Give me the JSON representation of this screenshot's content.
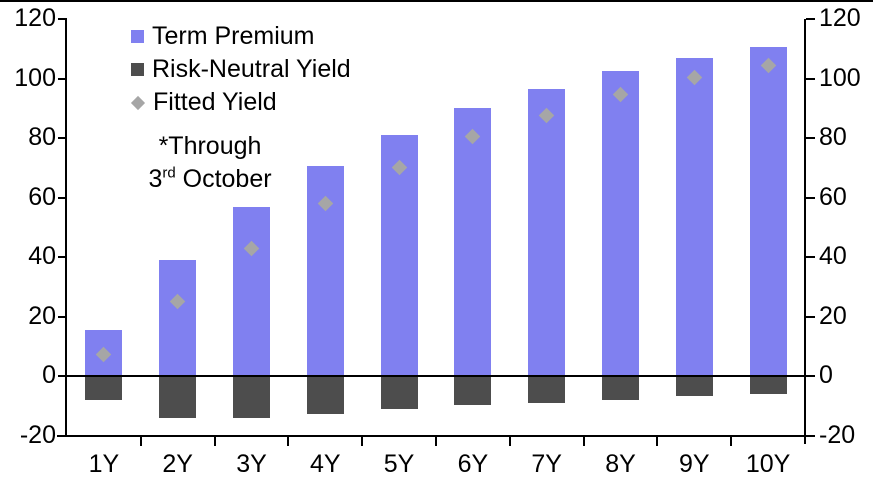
{
  "chart_data": {
    "type": "bar",
    "title": "",
    "categories": [
      "1Y",
      "2Y",
      "3Y",
      "4Y",
      "5Y",
      "6Y",
      "7Y",
      "8Y",
      "9Y",
      "10Y"
    ],
    "series": [
      {
        "name": "Term Premium",
        "render": "bar",
        "color": "#8080F0",
        "values": [
          15.5,
          39,
          57,
          70.5,
          81,
          90,
          96.5,
          102.5,
          107,
          110.5
        ]
      },
      {
        "name": "Risk-Neutral Yield",
        "render": "bar",
        "color": "#4D4D4D",
        "values": [
          -8,
          -14,
          -14,
          -12.5,
          -11,
          -9.5,
          -9,
          -8,
          -6.5,
          -6
        ]
      },
      {
        "name": "Fitted Yield",
        "render": "scatter-diamond",
        "color": "#A6A6A6",
        "values": [
          7.5,
          25,
          43,
          58,
          70,
          80.5,
          87.5,
          94.5,
          100.5,
          104.5
        ]
      }
    ],
    "ylim": [
      -20,
      120
    ],
    "yticks": [
      120,
      100,
      80,
      60,
      40,
      20,
      0,
      -20
    ],
    "grid": false,
    "legend_position": "top-left",
    "dual_y_axis": true,
    "annotation": {
      "line1": "*Through",
      "line2_base": "3",
      "line2_sup": "rd",
      "line2_rest": " October"
    }
  }
}
